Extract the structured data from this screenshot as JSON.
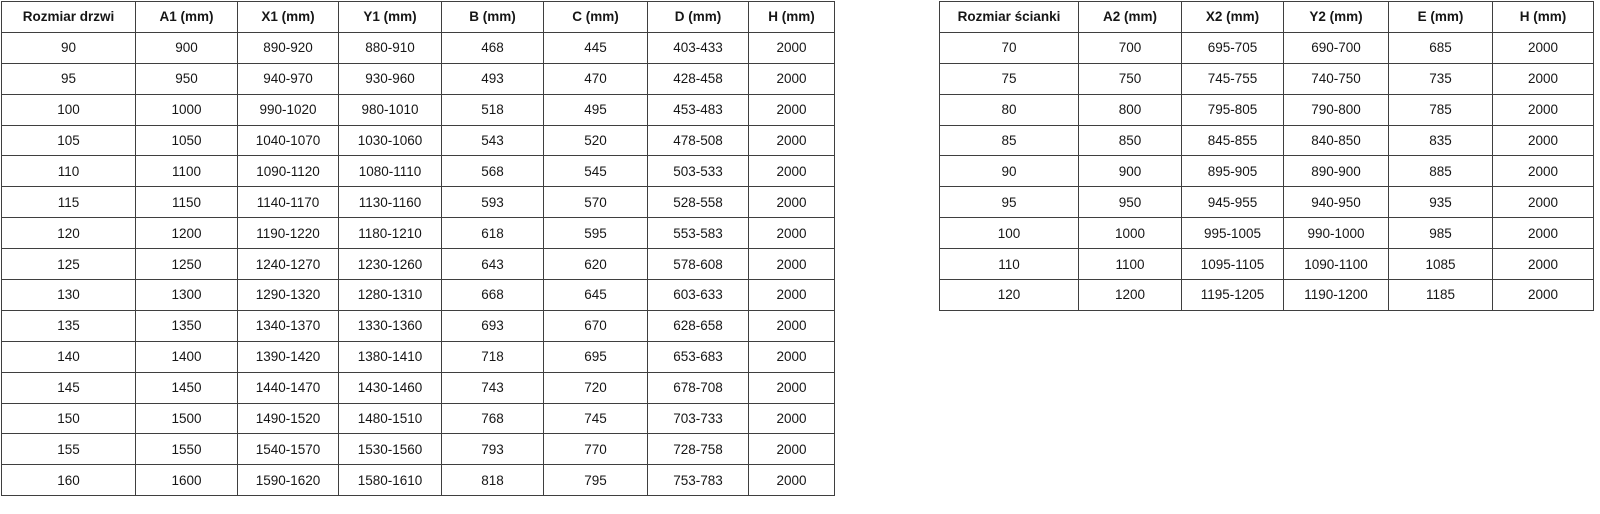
{
  "doors_table": {
    "headers": [
      "Rozmiar drzwi",
      "A1 (mm)",
      "X1 (mm)",
      "Y1 (mm)",
      "B (mm)",
      "C (mm)",
      "D (mm)",
      "H (mm)"
    ],
    "rows": [
      [
        "90",
        "900",
        "890-920",
        "880-910",
        "468",
        "445",
        "403-433",
        "2000"
      ],
      [
        "95",
        "950",
        "940-970",
        "930-960",
        "493",
        "470",
        "428-458",
        "2000"
      ],
      [
        "100",
        "1000",
        "990-1020",
        "980-1010",
        "518",
        "495",
        "453-483",
        "2000"
      ],
      [
        "105",
        "1050",
        "1040-1070",
        "1030-1060",
        "543",
        "520",
        "478-508",
        "2000"
      ],
      [
        "110",
        "1100",
        "1090-1120",
        "1080-1110",
        "568",
        "545",
        "503-533",
        "2000"
      ],
      [
        "115",
        "1150",
        "1140-1170",
        "1130-1160",
        "593",
        "570",
        "528-558",
        "2000"
      ],
      [
        "120",
        "1200",
        "1190-1220",
        "1180-1210",
        "618",
        "595",
        "553-583",
        "2000"
      ],
      [
        "125",
        "1250",
        "1240-1270",
        "1230-1260",
        "643",
        "620",
        "578-608",
        "2000"
      ],
      [
        "130",
        "1300",
        "1290-1320",
        "1280-1310",
        "668",
        "645",
        "603-633",
        "2000"
      ],
      [
        "135",
        "1350",
        "1340-1370",
        "1330-1360",
        "693",
        "670",
        "628-658",
        "2000"
      ],
      [
        "140",
        "1400",
        "1390-1420",
        "1380-1410",
        "718",
        "695",
        "653-683",
        "2000"
      ],
      [
        "145",
        "1450",
        "1440-1470",
        "1430-1460",
        "743",
        "720",
        "678-708",
        "2000"
      ],
      [
        "150",
        "1500",
        "1490-1520",
        "1480-1510",
        "768",
        "745",
        "703-733",
        "2000"
      ],
      [
        "155",
        "1550",
        "1540-1570",
        "1530-1560",
        "793",
        "770",
        "728-758",
        "2000"
      ],
      [
        "160",
        "1600",
        "1590-1620",
        "1580-1610",
        "818",
        "795",
        "753-783",
        "2000"
      ]
    ]
  },
  "walls_table": {
    "headers": [
      "Rozmiar ścianki",
      "A2 (mm)",
      "X2 (mm)",
      "Y2 (mm)",
      "E (mm)",
      "H (mm)"
    ],
    "rows": [
      [
        "70",
        "700",
        "695-705",
        "690-700",
        "685",
        "2000"
      ],
      [
        "75",
        "750",
        "745-755",
        "740-750",
        "735",
        "2000"
      ],
      [
        "80",
        "800",
        "795-805",
        "790-800",
        "785",
        "2000"
      ],
      [
        "85",
        "850",
        "845-855",
        "840-850",
        "835",
        "2000"
      ],
      [
        "90",
        "900",
        "895-905",
        "890-900",
        "885",
        "2000"
      ],
      [
        "95",
        "950",
        "945-955",
        "940-950",
        "935",
        "2000"
      ],
      [
        "100",
        "1000",
        "995-1005",
        "990-1000",
        "985",
        "2000"
      ],
      [
        "110",
        "1100",
        "1095-1105",
        "1090-1100",
        "1085",
        "2000"
      ],
      [
        "120",
        "1200",
        "1195-1205",
        "1190-1200",
        "1185",
        "2000"
      ]
    ]
  },
  "colors": {
    "border": "#3f3f3f",
    "text": "#161616",
    "background": "#ffffff"
  }
}
